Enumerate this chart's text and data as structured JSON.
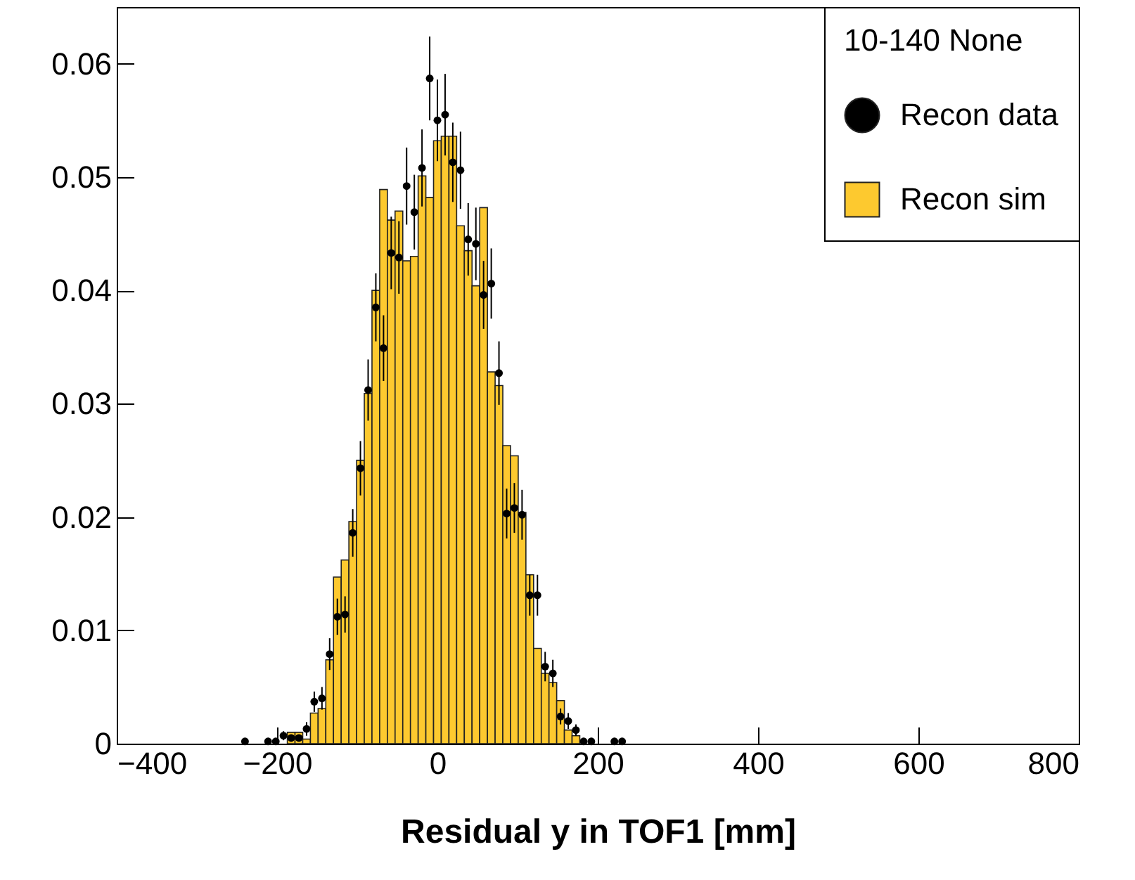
{
  "chart_data": {
    "type": "histogram",
    "xlabel": "Residual y in TOF1 [mm]",
    "legend_title": "10-140 None",
    "legend": "top right",
    "grid": false,
    "marker": "circle",
    "xlim": [
      -400,
      800
    ],
    "ylim": [
      0,
      0.065
    ],
    "xticks": [
      -400,
      -200,
      0,
      200,
      400,
      600,
      800
    ],
    "yticks": [
      0,
      0.01,
      0.02,
      0.03,
      0.04,
      0.05,
      0.06
    ],
    "bins": [
      -187.2,
      -177.6,
      -168,
      -158.4,
      -148.8,
      -139.2,
      -129.6,
      -120,
      -110.4,
      -100.8,
      -91.2,
      -81.6,
      -72,
      -62.4,
      -52.8,
      -43.2,
      -33.6,
      -24,
      -14.4,
      -4.8,
      4.8,
      14.4,
      24,
      33.6,
      43.2,
      52.8,
      62.4,
      72,
      81.6,
      91.2,
      100.8,
      110.4,
      120,
      129.6,
      139.2,
      148.8,
      158.4,
      168,
      177.6
    ],
    "series": [
      {
        "name": "Recon data",
        "type": "scatter",
        "color": "#000000",
        "x": [
          -240,
          -211.2,
          -201.6,
          -192,
          -182.4,
          -172.8,
          -163.2,
          -153.6,
          -144,
          -134.4,
          -124.8,
          -115.2,
          -105.6,
          -96,
          -86.4,
          -76.8,
          -67.2,
          -57.6,
          -48,
          -38.4,
          -28.8,
          -19.2,
          -9.6,
          0,
          9.6,
          19.2,
          28.8,
          38.4,
          48,
          57.6,
          67.2,
          76.8,
          86.4,
          96,
          105.6,
          115.2,
          124.8,
          134.4,
          144,
          153.6,
          163.2,
          172.8,
          182.4,
          192,
          220.8,
          230.4
        ],
        "values": [
          0.0002,
          0.0002,
          0.0002,
          0.0007,
          0.0005,
          0.0005,
          0.0013,
          0.0037,
          0.004,
          0.0079,
          0.0112,
          0.0114,
          0.0186,
          0.0243,
          0.0312,
          0.0385,
          0.0349,
          0.0433,
          0.0429,
          0.0492,
          0.0469,
          0.0508,
          0.0587,
          0.055,
          0.0555,
          0.0513,
          0.0506,
          0.0445,
          0.0441,
          0.0396,
          0.0406,
          0.0327,
          0.0203,
          0.0208,
          0.0202,
          0.0131,
          0.0131,
          0.0068,
          0.0062,
          0.0024,
          0.002,
          0.0012,
          0.0002,
          0.0002,
          0.0002,
          0.0002
        ],
        "errors": [
          0.0002,
          0.0002,
          0.0002,
          0.0004,
          0.0003,
          0.0003,
          0.0006,
          0.0009,
          0.001,
          0.0014,
          0.0016,
          0.0016,
          0.0021,
          0.0024,
          0.0027,
          0.003,
          0.0029,
          0.0032,
          0.0032,
          0.0034,
          0.0033,
          0.0034,
          0.0037,
          0.0036,
          0.0036,
          0.0035,
          0.0034,
          0.0032,
          0.0032,
          0.003,
          0.0031,
          0.0028,
          0.0022,
          0.0022,
          0.0022,
          0.0018,
          0.0018,
          0.0013,
          0.0012,
          0.0007,
          0.0007,
          0.0005,
          0.0002,
          0.0002,
          0.0002,
          0.0002
        ]
      },
      {
        "name": "Recon sim",
        "type": "histogram",
        "color": "#fdc92f",
        "values": [
          0.001,
          0.001,
          0.0004,
          0.0027,
          0.0031,
          0.0074,
          0.0147,
          0.0162,
          0.0196,
          0.025,
          0.0309,
          0.04,
          0.0489,
          0.0462,
          0.047,
          0.0426,
          0.043,
          0.0501,
          0.0482,
          0.0532,
          0.0536,
          0.0536,
          0.0457,
          0.0435,
          0.0404,
          0.0473,
          0.0328,
          0.0316,
          0.0263,
          0.0254,
          0.0204,
          0.0149,
          0.0084,
          0.0062,
          0.0054,
          0.0038,
          0.0012,
          0.0007
        ]
      }
    ]
  }
}
